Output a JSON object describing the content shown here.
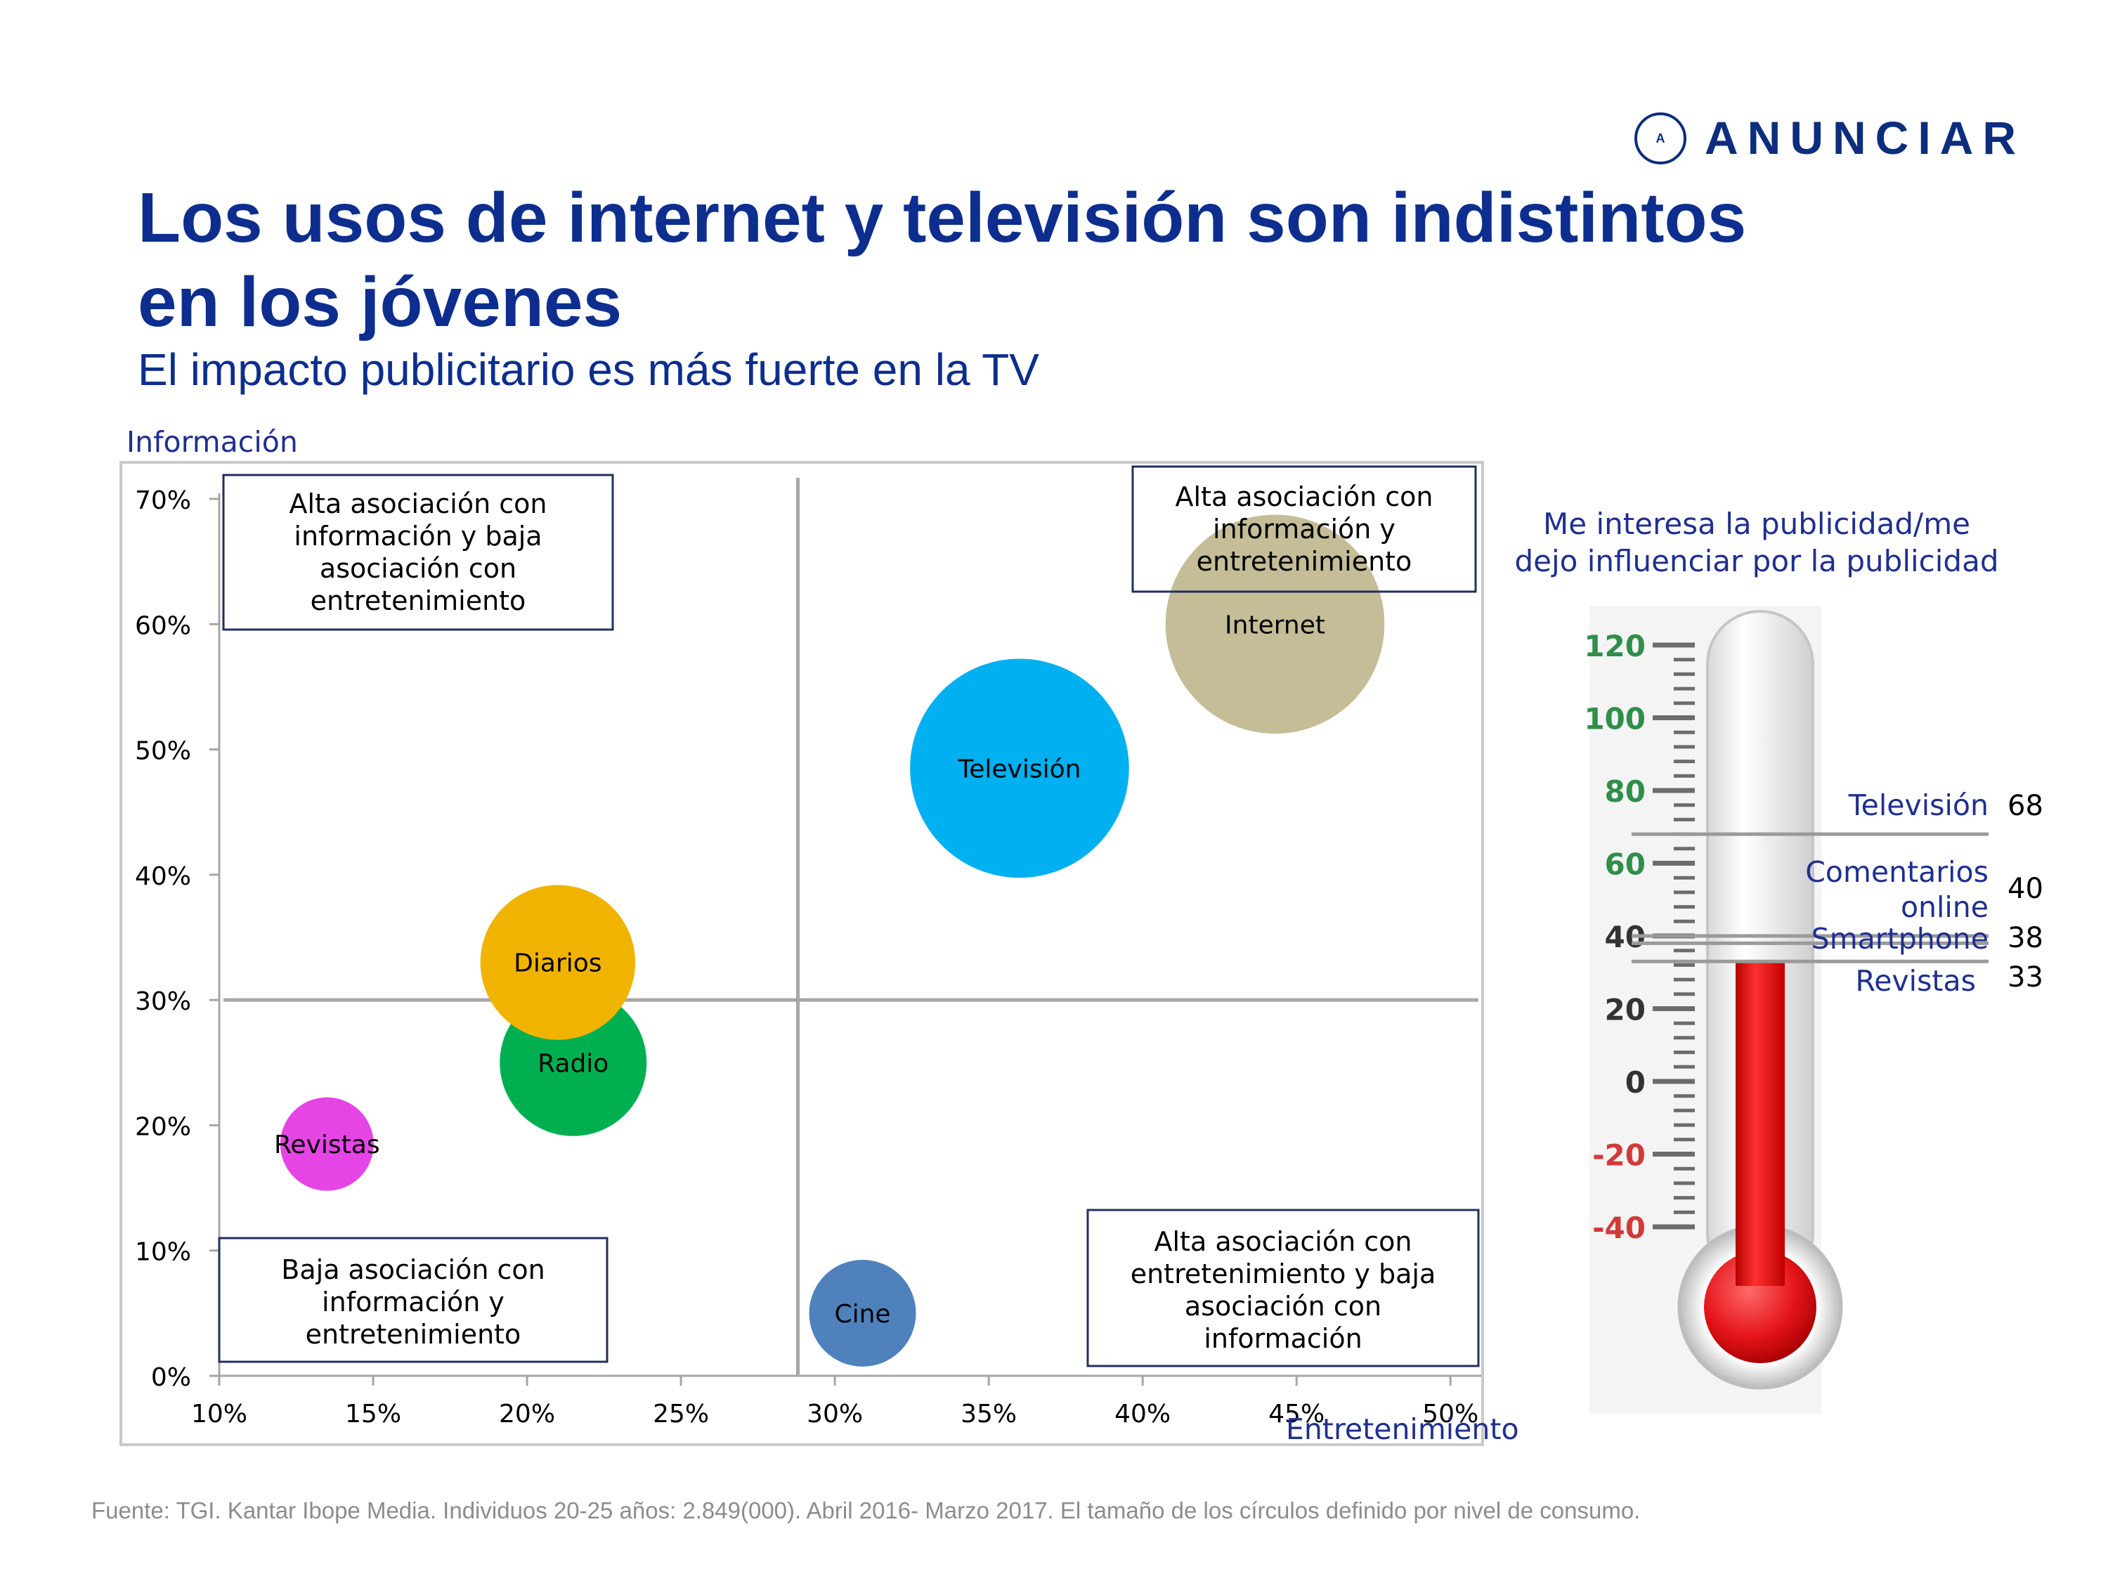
{
  "brand": {
    "name": "ANUNCIAR",
    "mark": "A",
    "icon": "anunciar-logo-icon"
  },
  "header": {
    "title_line1": "Los usos de internet y televisión son indistintos",
    "title_line2": "en los jóvenes",
    "subtitle": "El impacto publicitario es más fuerte en la TV"
  },
  "colors": {
    "brand": "#0d2d7d",
    "title": "#0d2e8e",
    "axis_label": "#1f2f8f",
    "Internet": "#c4bd97",
    "Televisión": "#00b0f0",
    "Diarios": "#f0b400",
    "Radio": "#00b050",
    "Revistas": "#e545e4",
    "Cine": "#4f81bd",
    "mercury": "#e4141a"
  },
  "chart_data": [
    {
      "type": "scatter",
      "subtype": "bubble",
      "xlabel": "Entretenimiento",
      "ylabel": "Información",
      "xlim": [
        10,
        51
      ],
      "ylim": [
        0,
        70
      ],
      "xticks": [
        "10%",
        "15%",
        "20%",
        "25%",
        "30%",
        "35%",
        "40%",
        "45%",
        "50%"
      ],
      "yticks": [
        "0%",
        "10%",
        "20%",
        "30%",
        "40%",
        "50%",
        "60%",
        "70%"
      ],
      "divider_x": 28.8,
      "divider_y": 30,
      "points": [
        {
          "label": "Internet",
          "x": 44.3,
          "y": 60,
          "size": 82
        },
        {
          "label": "Televisión",
          "x": 36,
          "y": 48.5,
          "size": 82
        },
        {
          "label": "Radio",
          "x": 21.5,
          "y": 25,
          "size": 55
        },
        {
          "label": "Diarios",
          "x": 21,
          "y": 33,
          "size": 58
        },
        {
          "label": "Revistas",
          "x": 13.5,
          "y": 18.5,
          "size": 35
        },
        {
          "label": "Cine",
          "x": 30.9,
          "y": 5,
          "size": 40
        }
      ],
      "quadrant_notes": {
        "top_left": [
          "Alta asociación con",
          "información y baja",
          "asociación con",
          "entretenimiento"
        ],
        "top_right": [
          "Alta asociación con",
          "información y",
          "entretenimiento"
        ],
        "bottom_left": [
          "Baja asociación con",
          "información y",
          "entretenimiento"
        ],
        "bottom_right": [
          "Alta asociación con",
          "entretenimiento y baja",
          "asociación con",
          "información"
        ]
      }
    },
    {
      "type": "bar",
      "subtype": "thermometer",
      "title": [
        "Me interesa la publicidad/me",
        "dejo influenciar por la publicidad"
      ],
      "scale_ticks": [
        "120",
        "100",
        "80",
        "60",
        "40",
        "20",
        "0",
        "-20",
        "-40"
      ],
      "scale_range": [
        -40,
        120
      ],
      "fill_value": 33,
      "categories": [
        "Televisión",
        "Comentarios online",
        "Smartphone",
        "Revistas"
      ],
      "values": [
        68,
        40,
        38,
        33
      ],
      "label_lines": [
        [
          "Televisión"
        ],
        [
          "Comentarios",
          "online"
        ],
        [
          "Smartphone"
        ],
        [
          "Revistas"
        ]
      ],
      "value_labels": [
        "68",
        "40",
        "38",
        "33"
      ]
    }
  ],
  "footer": {
    "source": "Fuente: TGI. Kantar Ibope Media. Individuos 20-25 años: 2.849(000). Abril 2016- Marzo 2017. El tamaño de los círculos definido por nivel de consumo."
  }
}
